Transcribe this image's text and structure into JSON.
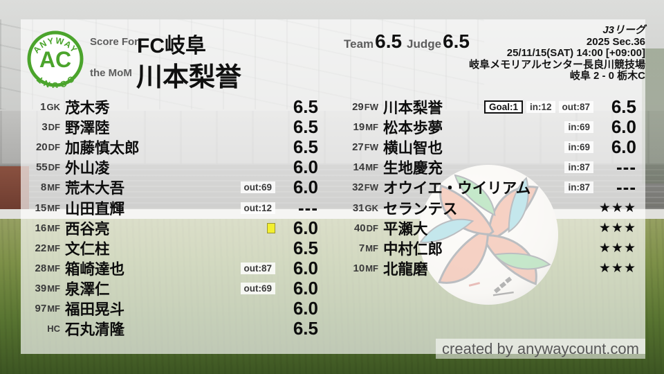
{
  "logo": {
    "top_text": "ANYWAY",
    "center_text": "AC",
    "bottom_text": "COUNT"
  },
  "header": {
    "score_for_label": "Score For",
    "team_name": "FC岐阜",
    "mom_label": "the MoM",
    "mom_name": "川本梨誉",
    "team_label": "Team",
    "team_score": "6.5",
    "judge_label": "Judge",
    "judge_score": "6.5"
  },
  "match_info": {
    "league": "J3リーグ",
    "season": "2025 Sec.36",
    "datetime": "25/11/15(SAT) 14:00 [+09:00]",
    "venue": "岐阜メモリアルセンター長良川競技場",
    "result": "岐阜 2 - 0 栃木C"
  },
  "left_players": [
    {
      "number": "1",
      "pos": "GK",
      "name": "茂木秀",
      "badges": [],
      "yellow": false,
      "rating": "6.5"
    },
    {
      "number": "3",
      "pos": "DF",
      "name": "野澤陸",
      "badges": [],
      "yellow": false,
      "rating": "6.5"
    },
    {
      "number": "20",
      "pos": "DF",
      "name": "加藤慎太郎",
      "badges": [],
      "yellow": false,
      "rating": "6.5"
    },
    {
      "number": "55",
      "pos": "DF",
      "name": "外山凌",
      "badges": [],
      "yellow": false,
      "rating": "6.0"
    },
    {
      "number": "8",
      "pos": "MF",
      "name": "荒木大吾",
      "badges": [
        {
          "text": "out:69",
          "type": "sub-out"
        }
      ],
      "yellow": false,
      "rating": "6.0"
    },
    {
      "number": "15",
      "pos": "MF",
      "name": "山田直輝",
      "badges": [
        {
          "text": "out:12",
          "type": "sub-out"
        }
      ],
      "yellow": false,
      "rating": "---"
    },
    {
      "number": "16",
      "pos": "MF",
      "name": "西谷亮",
      "badges": [],
      "yellow": true,
      "rating": "6.0"
    },
    {
      "number": "22",
      "pos": "MF",
      "name": "文仁柱",
      "badges": [],
      "yellow": false,
      "rating": "6.5"
    },
    {
      "number": "28",
      "pos": "MF",
      "name": "箱崎達也",
      "badges": [
        {
          "text": "out:87",
          "type": "sub-out"
        }
      ],
      "yellow": false,
      "rating": "6.0"
    },
    {
      "number": "39",
      "pos": "MF",
      "name": "泉澤仁",
      "badges": [
        {
          "text": "out:69",
          "type": "sub-out"
        }
      ],
      "yellow": false,
      "rating": "6.0"
    },
    {
      "number": "97",
      "pos": "MF",
      "name": "福田晃斗",
      "badges": [],
      "yellow": false,
      "rating": "6.0"
    },
    {
      "number": "",
      "pos": "HC",
      "name": "石丸清隆",
      "badges": [],
      "yellow": false,
      "rating": "6.5"
    }
  ],
  "right_players": [
    {
      "number": "29",
      "pos": "FW",
      "name": "川本梨誉",
      "badges": [
        {
          "text": "Goal:1",
          "type": "goal"
        },
        {
          "text": "in:12",
          "type": "sub-in"
        },
        {
          "text": "out:87",
          "type": "sub-out"
        }
      ],
      "yellow": false,
      "rating": "6.5"
    },
    {
      "number": "19",
      "pos": "MF",
      "name": "松本歩夢",
      "badges": [
        {
          "text": "in:69",
          "type": "sub-in"
        }
      ],
      "yellow": false,
      "rating": "6.0"
    },
    {
      "number": "27",
      "pos": "FW",
      "name": "横山智也",
      "badges": [
        {
          "text": "in:69",
          "type": "sub-in"
        }
      ],
      "yellow": false,
      "rating": "6.0"
    },
    {
      "number": "14",
      "pos": "MF",
      "name": "生地慶充",
      "badges": [
        {
          "text": "in:87",
          "type": "sub-in"
        }
      ],
      "yellow": false,
      "rating": "---"
    },
    {
      "number": "32",
      "pos": "FW",
      "name": "オウイエ・ウイリアム",
      "badges": [
        {
          "text": "in:87",
          "type": "sub-in"
        }
      ],
      "yellow": false,
      "rating": "---"
    },
    {
      "number": "31",
      "pos": "GK",
      "name": "セランテス",
      "badges": [],
      "yellow": false,
      "rating": "★★★"
    },
    {
      "number": "40",
      "pos": "DF",
      "name": "平瀬大",
      "badges": [],
      "yellow": false,
      "rating": "★★★"
    },
    {
      "number": "7",
      "pos": "MF",
      "name": "中村仁郎",
      "badges": [],
      "yellow": false,
      "rating": "★★★"
    },
    {
      "number": "10",
      "pos": "MF",
      "name": "北龍磨",
      "badges": [],
      "yellow": false,
      "rating": "★★★"
    }
  ],
  "footer": {
    "credit": "created by anywaycount.com"
  },
  "colors": {
    "accent_green": "#4ba42c",
    "yellow_card": "#f2ef2f",
    "ball_orange": "#e4764e",
    "ball_teal": "#4fb9c9",
    "ball_green": "#53bd62",
    "ball_seam": "#333b47"
  }
}
